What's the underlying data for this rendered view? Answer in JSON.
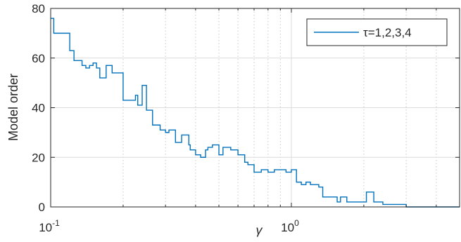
{
  "chart_data": {
    "type": "line",
    "line_style": "stairs",
    "xscale": "log",
    "xlim": [
      0.1,
      5
    ],
    "ylim": [
      0,
      80
    ],
    "grid": true,
    "minor_grid_x": true,
    "xlabel": "γ",
    "ylabel": "Model order",
    "xticks": [
      0.1,
      1
    ],
    "xtick_labels": [
      {
        "base": "10",
        "exp": "-1"
      },
      {
        "base": "10",
        "exp": "0"
      }
    ],
    "yticks": [
      0,
      20,
      40,
      60,
      80
    ],
    "ytick_labels": [
      "0",
      "20",
      "40",
      "60",
      "80"
    ],
    "legend_position": "top-right",
    "series_color": "#0072BD",
    "series": [
      {
        "name": "τ=1,2,3,4",
        "x": [
          0.1,
          0.103,
          0.12,
          0.125,
          0.135,
          0.14,
          0.145,
          0.15,
          0.155,
          0.16,
          0.17,
          0.18,
          0.2,
          0.215,
          0.225,
          0.23,
          0.24,
          0.25,
          0.265,
          0.285,
          0.3,
          0.31,
          0.33,
          0.35,
          0.375,
          0.38,
          0.4,
          0.42,
          0.44,
          0.45,
          0.47,
          0.5,
          0.52,
          0.54,
          0.56,
          0.6,
          0.64,
          0.66,
          0.7,
          0.72,
          0.75,
          0.8,
          0.85,
          0.9,
          0.95,
          1.0,
          1.05,
          1.1,
          1.15,
          1.2,
          1.3,
          1.35,
          1.4,
          1.55,
          1.6,
          1.65,
          1.7,
          2.0,
          2.05,
          2.1,
          2.2,
          2.4,
          3.0
        ],
        "y": [
          76,
          70,
          63,
          59,
          57,
          56,
          57,
          58,
          56,
          52,
          57,
          54,
          43,
          43,
          45,
          41,
          49,
          39,
          33,
          31,
          30,
          31,
          26,
          29,
          25,
          23,
          21,
          20,
          23,
          24,
          25,
          21,
          24,
          24,
          23,
          21,
          18,
          17,
          14,
          14,
          15,
          14,
          15,
          15,
          14,
          15,
          10,
          9,
          10,
          9,
          8,
          4,
          4,
          2,
          4,
          4,
          2,
          2,
          6,
          6,
          2,
          1,
          0
        ]
      }
    ]
  }
}
